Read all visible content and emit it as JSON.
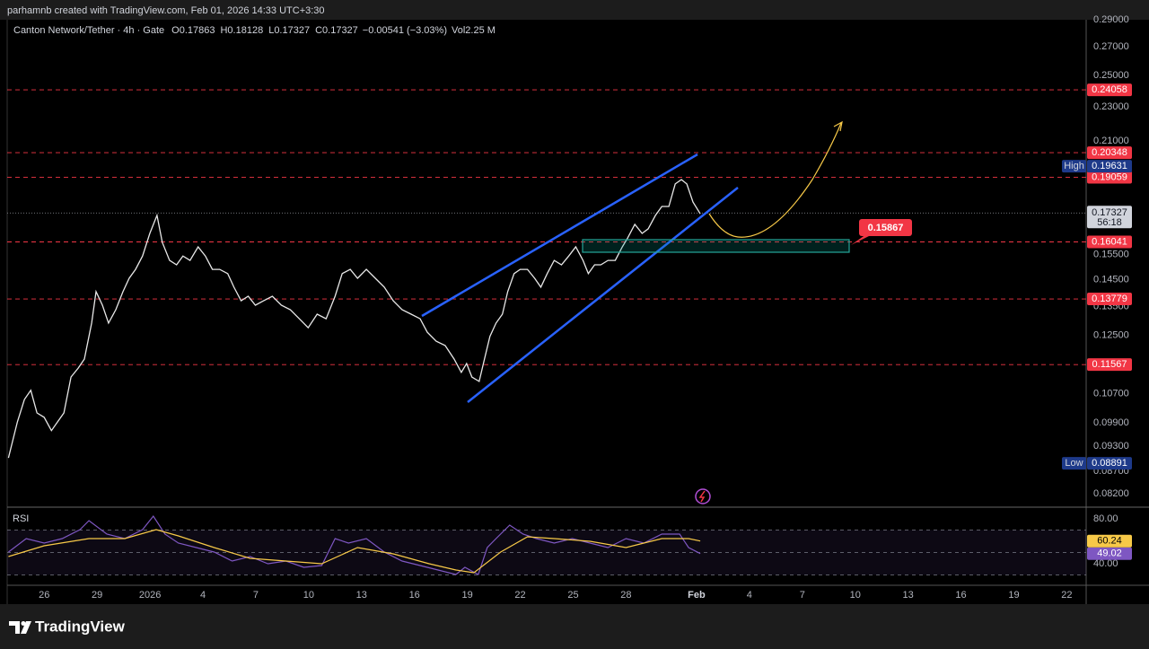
{
  "header": {
    "attribution": "parhamnb created with TradingView.com, Feb 01, 2026 14:33 UTC+3:30"
  },
  "chart_data": [
    {
      "type": "line",
      "title": "Canton Network/Tether · 4h · Gate",
      "ohlc": [
        {
          "label": "O",
          "value": 0.17863
        },
        {
          "label": "H",
          "value": 0.18128
        },
        {
          "label": "L",
          "value": 0.17327
        },
        {
          "label": "C",
          "value": 0.17327
        }
      ],
      "change": "−0.00541 (−3.03%)",
      "volume": {
        "label": "Vol",
        "value": "2.25 M"
      },
      "x": [
        23.97,
        24.48,
        24.88,
        25.24,
        25.59,
        26.0,
        26.41,
        26.76,
        27.12,
        27.52,
        27.93,
        28.28,
        28.69,
        28.94,
        29.3,
        29.65,
        30.06,
        30.47,
        30.82,
        31.18,
        31.58,
        31.99,
        32.4,
        32.7,
        33.11,
        33.51,
        33.87,
        34.27,
        34.73,
        35.14,
        35.54,
        35.95,
        36.41,
        36.76,
        37.17,
        37.57,
        37.98,
        38.44,
        38.94,
        39.45,
        39.96,
        40.47,
        40.97,
        41.48,
        41.99,
        42.5,
        42.9,
        43.36,
        43.77,
        44.27,
        44.78,
        45.29,
        45.8,
        46.3,
        46.81,
        47.32,
        47.73,
        48.23,
        48.74,
        49.25,
        49.66,
        49.96,
        50.26,
        50.67,
        50.97,
        51.28,
        51.63,
        51.99,
        52.29,
        52.65,
        53.0,
        53.41,
        53.82,
        54.17,
        54.53,
        54.93,
        55.34,
        55.75,
        56.15,
        56.56,
        56.86,
        57.22,
        57.57,
        57.98,
        58.39,
        58.79,
        59.1,
        59.5,
        59.91,
        60.26,
        60.67,
        61.03,
        61.43,
        61.79,
        62.14,
        62.45,
        62.8,
        63.21
      ],
      "values": [
        0.0902,
        0.0993,
        0.1054,
        0.108,
        0.1017,
        0.1005,
        0.097,
        0.0993,
        0.1017,
        0.1119,
        0.1146,
        0.1174,
        0.1292,
        0.1405,
        0.1355,
        0.1292,
        0.1339,
        0.1405,
        0.1456,
        0.1491,
        0.1545,
        0.1641,
        0.1722,
        0.1602,
        0.1527,
        0.1509,
        0.1545,
        0.1527,
        0.1583,
        0.1545,
        0.1491,
        0.1491,
        0.1474,
        0.1422,
        0.1371,
        0.1388,
        0.1355,
        0.1371,
        0.1388,
        0.1355,
        0.1339,
        0.1307,
        0.1276,
        0.1323,
        0.1307,
        0.1388,
        0.1474,
        0.1491,
        0.1456,
        0.1491,
        0.1456,
        0.1422,
        0.1371,
        0.1339,
        0.1323,
        0.1307,
        0.1261,
        0.1231,
        0.1217,
        0.1174,
        0.1133,
        0.116,
        0.1119,
        0.1106,
        0.1174,
        0.1247,
        0.1292,
        0.1323,
        0.1405,
        0.1474,
        0.1491,
        0.1491,
        0.1456,
        0.1422,
        0.1474,
        0.1527,
        0.1509,
        0.1545,
        0.1583,
        0.1527,
        0.1474,
        0.1509,
        0.1509,
        0.1527,
        0.1527,
        0.1583,
        0.1622,
        0.1681,
        0.1641,
        0.1661,
        0.1722,
        0.1763,
        0.1763,
        0.1872,
        0.1894,
        0.1872,
        0.1784,
        0.1729
      ],
      "color": "#e8e8e8",
      "xlim": [
        23.9,
        85.1
      ],
      "ylim": [
        0.0791,
        0.29
      ],
      "log_scale": true,
      "yticks": [
        {
          "value": 0.29,
          "label": "0.29000"
        },
        {
          "value": 0.27,
          "label": "0.27000"
        },
        {
          "value": 0.25,
          "label": "0.25000"
        },
        {
          "value": 0.23,
          "label": "0.23000"
        },
        {
          "value": 0.21,
          "label": "0.21000"
        },
        {
          "value": 0.155,
          "label": "0.15500"
        },
        {
          "value": 0.145,
          "label": "0.14500"
        },
        {
          "value": 0.135,
          "label": "0.13500"
        },
        {
          "value": 0.125,
          "label": "0.12500"
        },
        {
          "value": 0.107,
          "label": "0.10700"
        },
        {
          "value": 0.099,
          "label": "0.09900"
        },
        {
          "value": 0.093,
          "label": "0.09300"
        },
        {
          "value": 0.087,
          "label": "0.08700"
        },
        {
          "value": 0.082,
          "label": "0.08200"
        }
      ],
      "levels": [
        0.24058,
        0.20348,
        0.19059,
        0.16041,
        0.13779,
        0.11567
      ],
      "level_color": "#f23645",
      "high": {
        "label": "High",
        "value": 0.19631
      },
      "low": {
        "label": "Low",
        "value": 0.08891
      },
      "last": {
        "value": 0.17327,
        "countdown": "56:18"
      },
      "annotation": {
        "value": 0.15867
      }
    },
    {
      "type": "line",
      "title": "RSI",
      "series": [
        {
          "color": "#7e57c2",
          "x": [
            23.97,
            24.98,
            26.0,
            27.02,
            28.03,
            28.54,
            29.55,
            30.57,
            31.58,
            32.19,
            32.85,
            33.61,
            34.63,
            35.64,
            36.66,
            37.68,
            38.69,
            39.71,
            40.72,
            41.74,
            42.5,
            43.26,
            44.27,
            45.29,
            46.3,
            47.32,
            48.34,
            49.35,
            49.86,
            50.62,
            51.13,
            51.63,
            52.4,
            53.16,
            53.92,
            54.93,
            55.95,
            56.96,
            57.98,
            59.0,
            60.01,
            61.03,
            62.04,
            62.55,
            63.21
          ],
          "values": [
            50.4,
            62.4,
            58.4,
            62.4,
            70.4,
            78.4,
            66.4,
            62.4,
            70.4,
            82.4,
            66.4,
            58.4,
            54.4,
            50.4,
            42.4,
            46.4,
            40.0,
            42.4,
            36.8,
            38.4,
            62.4,
            58.4,
            62.4,
            50.4,
            42.4,
            38.4,
            34.4,
            30.4,
            36.8,
            30.4,
            54.4,
            62.4,
            74.4,
            66.4,
            62.4,
            58.4,
            62.4,
            58.4,
            54.4,
            62.4,
            58.4,
            66.4,
            66.4,
            54.4,
            49.02
          ]
        },
        {
          "color": "#f7c948",
          "x": [
            23.97,
            26.0,
            28.54,
            30.57,
            32.35,
            33.61,
            35.64,
            37.68,
            39.71,
            41.74,
            43.77,
            45.8,
            47.83,
            49.35,
            50.37,
            51.89,
            53.41,
            54.93,
            56.96,
            59.0,
            61.03,
            62.55,
            63.21
          ],
          "values": [
            46.4,
            56.0,
            62.4,
            62.4,
            70.4,
            64.8,
            54.4,
            44.8,
            42.4,
            40.0,
            54.4,
            48.8,
            40.0,
            34.4,
            32.0,
            50.4,
            64.0,
            62.4,
            60.0,
            54.4,
            62.4,
            62.4,
            60.24
          ]
        }
      ],
      "xlim": [
        23.9,
        85.1
      ],
      "ylim": [
        20.8,
        90.4
      ],
      "yticks": [
        {
          "value": 80,
          "label": "80.00"
        },
        {
          "value": 40,
          "label": "40.00"
        }
      ],
      "levels": [
        70,
        50,
        30
      ],
      "xticks": [
        26,
        29,
        {
          "value": 32,
          "label": "2026"
        },
        {
          "value": 35,
          "label": "4"
        },
        {
          "value": 38,
          "label": "7"
        },
        {
          "value": 41,
          "label": "10"
        },
        {
          "value": 44,
          "label": "13"
        },
        {
          "value": 47,
          "label": "16"
        },
        {
          "value": 50,
          "label": "19"
        },
        {
          "value": 53,
          "label": "22"
        },
        {
          "value": 56,
          "label": "25"
        },
        {
          "value": 59,
          "label": "28"
        },
        {
          "value": 63,
          "label": "Feb"
        },
        {
          "value": 66,
          "label": "4"
        },
        {
          "value": 69,
          "label": "7"
        },
        {
          "value": 72,
          "label": "10"
        },
        {
          "value": 75,
          "label": "13"
        },
        {
          "value": 78,
          "label": "16"
        },
        {
          "value": 81,
          "label": "19"
        },
        {
          "value": 84,
          "label": "22"
        }
      ]
    }
  ],
  "footer": {
    "brand": "TradingView"
  }
}
